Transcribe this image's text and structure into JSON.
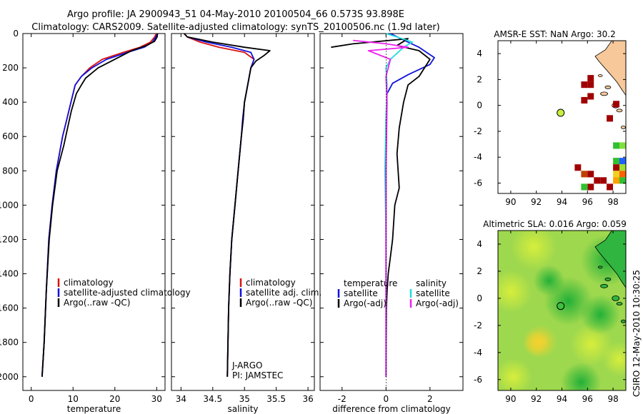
{
  "header": {
    "line1": "Argo profile: JA 2900943_51 04-May-2010 20100504_66 0.573S 93.898E",
    "line2": "Climatology: CARS2009. Satellite-adjusted climatology: synTS_20100506.nc (1.9d later)"
  },
  "side_label": "CSIRO 12-May-2010 10:30:25",
  "colors": {
    "climatology": "#dd1111",
    "satellite": "#1111dd",
    "argo": "#000000",
    "salinity_satellite": "#22dddd",
    "salinity_argo": "#ee22ee",
    "land": "#f6c89a",
    "marker": "#c8f040"
  },
  "chart_data": [
    {
      "id": "temperature",
      "type": "line",
      "xlabel": "temperature",
      "xlim": [
        -2,
        32
      ],
      "ylim": [
        2080,
        0
      ],
      "xticks": [
        0,
        10,
        20,
        30
      ],
      "yticks": [
        0,
        200,
        400,
        600,
        800,
        1000,
        1200,
        1400,
        1600,
        1800,
        2000
      ],
      "legend": [
        "climatology",
        "satellite-adjusted climatology",
        "Argo(..raw -QC)"
      ],
      "series": [
        {
          "name": "climatology",
          "color": "#dd1111",
          "x": [
            29.9,
            29.5,
            28.5,
            26,
            22,
            17,
            14,
            12,
            10.5,
            9.5,
            8.5,
            7.5,
            6,
            5,
            4.2,
            3.6,
            3.1,
            2.6
          ],
          "y": [
            0,
            20,
            50,
            80,
            110,
            150,
            200,
            250,
            300,
            400,
            500,
            600,
            800,
            1000,
            1200,
            1500,
            1800,
            2000
          ]
        },
        {
          "name": "satellite-adjusted climatology",
          "color": "#1111dd",
          "x": [
            30.2,
            29.8,
            29,
            27,
            23,
            18,
            14.5,
            12,
            10.5,
            9.5,
            8.5,
            7.5,
            6,
            5,
            4.2,
            3.6,
            3.1,
            2.6
          ],
          "y": [
            0,
            20,
            50,
            80,
            110,
            150,
            200,
            250,
            300,
            400,
            500,
            600,
            800,
            1000,
            1200,
            1500,
            1800,
            2000
          ]
        },
        {
          "name": "Argo(..raw -QC)",
          "color": "#000000",
          "x": [
            30.2,
            30.1,
            29.5,
            27.5,
            24,
            20,
            16,
            13,
            12,
            10.8,
            9.6,
            8.7,
            7.8,
            6.2,
            5.1,
            4.3,
            3.6,
            3.1,
            2.6
          ],
          "y": [
            0,
            20,
            45,
            70,
            100,
            150,
            200,
            260,
            300,
            350,
            450,
            550,
            650,
            800,
            1000,
            1200,
            1500,
            1800,
            2000
          ]
        }
      ]
    },
    {
      "id": "salinity",
      "type": "line",
      "xlabel": "salinity",
      "xlim": [
        33.85,
        36.1
      ],
      "ylim": [
        2080,
        0
      ],
      "xticks": [
        34,
        34.5,
        35,
        35.5,
        36
      ],
      "legend": [
        "climatology",
        "satellite adj. clim.",
        "Argo(..raw -QC)"
      ],
      "annotations": [
        "J-ARGO",
        "PI: JAMSTEC"
      ],
      "series": [
        {
          "name": "climatology",
          "color": "#dd1111",
          "x": [
            34.05,
            34.1,
            34.3,
            34.6,
            35.0,
            35.15,
            35.1,
            35.05,
            35.0,
            34.98,
            34.95,
            34.9,
            34.85,
            34.8,
            34.77,
            34.75,
            34.74,
            34.73
          ],
          "y": [
            0,
            20,
            50,
            80,
            110,
            150,
            200,
            300,
            400,
            500,
            600,
            800,
            1000,
            1200,
            1400,
            1600,
            1800,
            2000
          ]
        },
        {
          "name": "satellite adj. clim.",
          "color": "#1111dd",
          "x": [
            34.05,
            34.1,
            34.4,
            34.8,
            35.1,
            35.15,
            35.1,
            35.05,
            35.0,
            34.97,
            34.95,
            34.9,
            34.85,
            34.8,
            34.77,
            34.75,
            34.74,
            34.73
          ],
          "y": [
            0,
            20,
            50,
            80,
            110,
            150,
            200,
            300,
            400,
            500,
            600,
            800,
            1000,
            1200,
            1400,
            1600,
            1800,
            2000
          ]
        },
        {
          "name": "Argo(..raw -QC)",
          "color": "#000000",
          "x": [
            34.05,
            34.1,
            34.5,
            35.0,
            35.4,
            35.3,
            35.18,
            35.1,
            35.05,
            35.0,
            34.98,
            34.95,
            34.9,
            34.85,
            34.8,
            34.77,
            34.75,
            34.74,
            34.73
          ],
          "y": [
            0,
            20,
            50,
            80,
            100,
            130,
            160,
            200,
            300,
            400,
            500,
            600,
            800,
            1000,
            1200,
            1400,
            1600,
            1800,
            2000
          ]
        }
      ]
    },
    {
      "id": "difference",
      "type": "line",
      "xlabel": "difference from climatology",
      "xlim": [
        -3,
        3.5
      ],
      "ylim": [
        2080,
        0
      ],
      "xticks": [
        -2,
        0,
        2
      ],
      "legend": [
        "temperature",
        "satellite",
        "Argo(-adj)",
        "salinity",
        "satellite",
        "Argo(-adj)"
      ],
      "series": [
        {
          "name": "temperature satellite",
          "color": "#1111dd",
          "x": [
            0.2,
            1.0,
            1.5,
            2.2,
            2.0,
            1.0,
            0.3,
            0.05,
            0,
            0,
            0,
            0,
            0
          ],
          "y": [
            0,
            50,
            80,
            140,
            180,
            240,
            290,
            350,
            500,
            800,
            1200,
            1600,
            2000
          ]
        },
        {
          "name": "temperature Argo(-adj)",
          "color": "#000000",
          "x": [
            -2.5,
            -1.5,
            1.0,
            0.5,
            1.5,
            2.0,
            1.5,
            1.0,
            0.8,
            0.6,
            0.5,
            0.6,
            0.4,
            0.3,
            0.2,
            0.1,
            0.05,
            0.02,
            0
          ],
          "y": [
            80,
            60,
            30,
            70,
            100,
            150,
            250,
            300,
            400,
            550,
            700,
            900,
            1000,
            1200,
            1300,
            1400,
            1500,
            1600,
            2000
          ]
        },
        {
          "name": "salinity satellite",
          "color": "#22dddd",
          "x": [
            0,
            0.5,
            1.2,
            0.8,
            0.2,
            0,
            0.05,
            0,
            -0.05,
            0,
            0
          ],
          "y": [
            0,
            20,
            50,
            80,
            150,
            200,
            300,
            500,
            800,
            1200,
            2000
          ]
        },
        {
          "name": "salinity Argo(-adj)",
          "color": "#ee22ee",
          "x": [
            -1.5,
            0,
            1.0,
            -0.8,
            0.2,
            0,
            0.05,
            0,
            0,
            0
          ],
          "y": [
            40,
            60,
            80,
            100,
            150,
            250,
            400,
            800,
            1500,
            2000
          ]
        }
      ]
    },
    {
      "id": "sst_map",
      "type": "heatmap",
      "title": "AMSR-E SST: NaN Argo: 30.2",
      "xlim": [
        89,
        99
      ],
      "ylim": [
        -6.8,
        5
      ],
      "xticks": [
        90,
        92,
        94,
        96,
        98
      ],
      "yticks": [
        -6,
        -4,
        -2,
        0,
        2,
        4
      ],
      "argo_position": [
        93.9,
        -0.57
      ],
      "cells": [
        {
          "x": 95.75,
          "y": 1.6,
          "color": "#a00000"
        },
        {
          "x": 96.25,
          "y": 1.6,
          "color": "#a00000"
        },
        {
          "x": 96.25,
          "y": 2.1,
          "color": "#a00000"
        },
        {
          "x": 95.75,
          "y": 0.4,
          "color": "#a00000"
        },
        {
          "x": 96.25,
          "y": 0.7,
          "color": "#a00000"
        },
        {
          "x": 98.25,
          "y": 0.1,
          "color": "#a00000"
        },
        {
          "x": 97.75,
          "y": -1.0,
          "color": "#a00000"
        },
        {
          "x": 95.25,
          "y": -4.8,
          "color": "#a00000"
        },
        {
          "x": 95.75,
          "y": -5.3,
          "color": "#c04000"
        },
        {
          "x": 96.25,
          "y": -5.3,
          "color": "#a00000"
        },
        {
          "x": 96.75,
          "y": -5.8,
          "color": "#a00000"
        },
        {
          "x": 97.25,
          "y": -5.8,
          "color": "#a00000"
        },
        {
          "x": 97.75,
          "y": -6.3,
          "color": "#a00000"
        },
        {
          "x": 96.25,
          "y": -6.3,
          "color": "#a00000"
        },
        {
          "x": 95.75,
          "y": -6.3,
          "color": "#30c030"
        },
        {
          "x": 98.25,
          "y": -3.1,
          "color": "#30c030"
        },
        {
          "x": 98.75,
          "y": -3.1,
          "color": "#80e040"
        },
        {
          "x": 98.25,
          "y": -4.3,
          "color": "#30c030"
        },
        {
          "x": 98.75,
          "y": -4.3,
          "color": "#2060ff"
        },
        {
          "x": 98.25,
          "y": -4.8,
          "color": "#a00000"
        },
        {
          "x": 98.75,
          "y": -4.8,
          "color": "#a0e030"
        },
        {
          "x": 98.25,
          "y": -5.3,
          "color": "#f0d020"
        },
        {
          "x": 98.75,
          "y": -5.3,
          "color": "#ff6000"
        },
        {
          "x": 98.75,
          "y": -5.8,
          "color": "#30c030"
        },
        {
          "x": 98.25,
          "y": -5.8,
          "color": "#ffa000"
        }
      ]
    },
    {
      "id": "sla_map",
      "type": "heatmap",
      "title": "Altimetric SLA: 0.016 Argo: 0.059",
      "xlim": [
        89,
        99
      ],
      "ylim": [
        -6.8,
        5
      ],
      "xticks": [
        90,
        92,
        94,
        96,
        98
      ],
      "yticks": [
        -6,
        -4,
        -2,
        0,
        2,
        4
      ],
      "argo_position": [
        93.9,
        -0.57
      ]
    }
  ]
}
